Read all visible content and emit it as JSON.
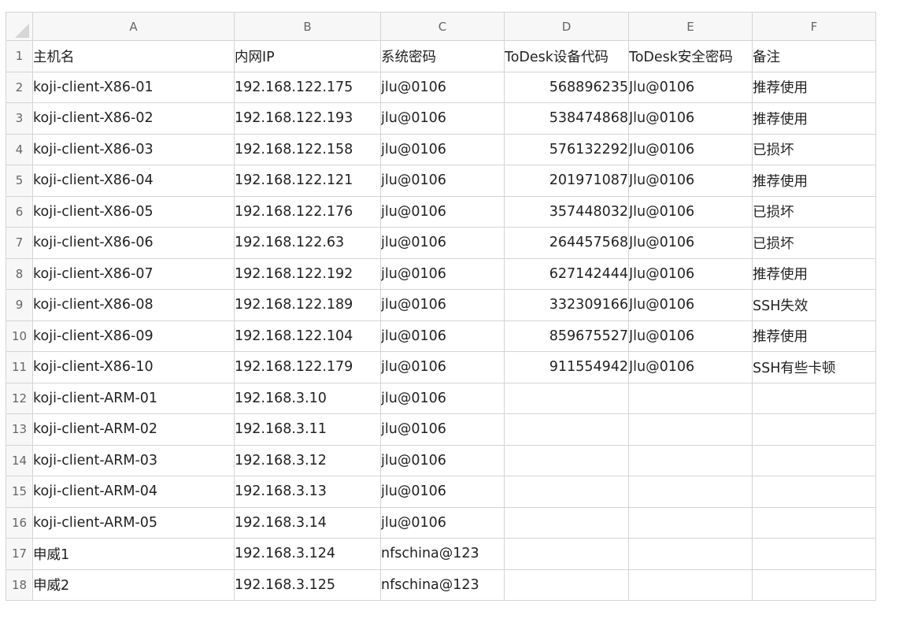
{
  "columns": [
    "A",
    "B",
    "C",
    "D",
    "E",
    "F"
  ],
  "colors": {
    "good": "#33b02e",
    "bad": "#e64545",
    "grid": "#d4d4d4",
    "header_bg": "#f7f7f7"
  },
  "rows": [
    {
      "n": "1",
      "a": "主机名",
      "b": "内网IP",
      "c": "系统密码",
      "d": "ToDesk设备代码",
      "e": "ToDesk安全密码",
      "f": "备注",
      "status": ""
    },
    {
      "n": "2",
      "a": "koji-client-X86-01",
      "b": "192.168.122.175",
      "c": "jlu@0106",
      "d": "568896235",
      "e": "Jlu@0106",
      "f": "推荐使用",
      "status": "good"
    },
    {
      "n": "3",
      "a": "koji-client-X86-02",
      "b": "192.168.122.193",
      "c": "jlu@0106",
      "d": "538474868",
      "e": "Jlu@0106",
      "f": "推荐使用",
      "status": "good"
    },
    {
      "n": "4",
      "a": "koji-client-X86-03",
      "b": "192.168.122.158",
      "c": "jlu@0106",
      "d": "576132292",
      "e": "Jlu@0106",
      "f": "已损坏",
      "status": "bad"
    },
    {
      "n": "5",
      "a": "koji-client-X86-04",
      "b": " 192.168.122.121",
      "c": "jlu@0106",
      "d": "201971087",
      "e": "Jlu@0106",
      "f": "推荐使用",
      "status": "good"
    },
    {
      "n": "6",
      "a": "koji-client-X86-05",
      "b": "192.168.122.176",
      "c": "jlu@0106",
      "d": "357448032",
      "e": "Jlu@0106",
      "f": "已损坏",
      "status": "bad"
    },
    {
      "n": "7",
      "a": "koji-client-X86-06",
      "b": "192.168.122.63",
      "c": "jlu@0106",
      "d": "264457568",
      "e": "Jlu@0106",
      "f": "已损坏",
      "status": "bad"
    },
    {
      "n": "8",
      "a": "koji-client-X86-07",
      "b": "192.168.122.192",
      "c": "jlu@0106",
      "d": "627142444",
      "e": "Jlu@0106",
      "f": "推荐使用",
      "status": "good"
    },
    {
      "n": "9",
      "a": "koji-client-X86-08",
      "b": "192.168.122.189",
      "c": "jlu@0106",
      "d": "332309166",
      "e": "Jlu@0106",
      "f": "SSH失效",
      "status": "bad"
    },
    {
      "n": "10",
      "a": "koji-client-X86-09",
      "b": "192.168.122.104",
      "c": "jlu@0106",
      "d": "859675527",
      "e": "Jlu@0106",
      "f": "推荐使用",
      "status": "good"
    },
    {
      "n": "11",
      "a": "koji-client-X86-10",
      "b": "192.168.122.179",
      "c": "jlu@0106",
      "d": "911554942",
      "e": "Jlu@0106",
      "f": "SSH有些卡顿",
      "status": "bad"
    },
    {
      "n": "12",
      "a": "koji-client-ARM-01",
      "b": "192.168.3.10",
      "c": "jlu@0106",
      "d": "",
      "e": "",
      "f": "",
      "status": ""
    },
    {
      "n": "13",
      "a": "koji-client-ARM-02",
      "b": "192.168.3.11",
      "c": "jlu@0106",
      "d": "",
      "e": "",
      "f": "",
      "status": ""
    },
    {
      "n": "14",
      "a": "koji-client-ARM-03",
      "b": "192.168.3.12",
      "c": "jlu@0106",
      "d": "",
      "e": "",
      "f": "",
      "status": ""
    },
    {
      "n": "15",
      "a": "koji-client-ARM-04",
      "b": "192.168.3.13",
      "c": "jlu@0106",
      "d": "",
      "e": "",
      "f": "",
      "status": ""
    },
    {
      "n": "16",
      "a": "koji-client-ARM-05",
      "b": "192.168.3.14",
      "c": "jlu@0106",
      "d": "",
      "e": "",
      "f": "",
      "status": ""
    },
    {
      "n": "17",
      "a": "申威1",
      "b": "192.168.3.124",
      "c": "nfschina@123",
      "d": "",
      "e": "",
      "f": "",
      "status": ""
    },
    {
      "n": "18",
      "a": "申威2",
      "b": "192.168.3.125",
      "c": "nfschina@123",
      "d": "",
      "e": "",
      "f": "",
      "status": ""
    }
  ]
}
